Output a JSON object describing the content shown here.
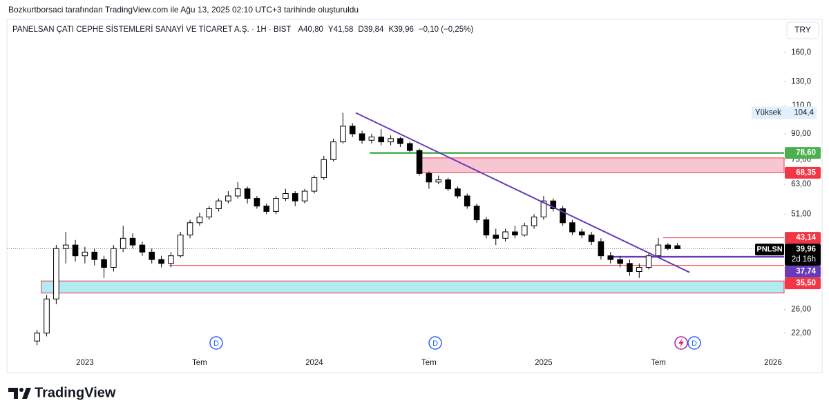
{
  "chart_data": {
    "type": "candlestick",
    "attribution": "Bozkurtborsaci tarafından TradingView.com ile Ağu 13, 2025 02:10 UTC+3 tarihinde oluşturuldu",
    "title": "PANELSAN ÇATI CEPHE SİSTEMLERİ SANAYİ VE TİCARET A.Ş. · 1H · BIST",
    "legend_values": [
      "A40,80",
      "Y41,58",
      "D39,84",
      "K39,96",
      "−0,10 (−0,25%)"
    ],
    "currency": "TRY",
    "brand": "TradingView",
    "log_scale": true,
    "x": [
      -2.5,
      -2,
      -1.5,
      -1,
      -0.5,
      0,
      0.5,
      1,
      1.5,
      2,
      2.5,
      3,
      3.5,
      4,
      4.5,
      5,
      5.5,
      6,
      6.5,
      7,
      7.5,
      8,
      8.5,
      9,
      9.5,
      10,
      10.5,
      11,
      11.5,
      12,
      12.5,
      13,
      13.5,
      14,
      14.5,
      15,
      15.5,
      16,
      16.5,
      17,
      17.5,
      18,
      18.5,
      19,
      19.5,
      20,
      20.5,
      21,
      21.5,
      22,
      22.5,
      23,
      23.5,
      24,
      24.5,
      25,
      25.5,
      26,
      26.5,
      27,
      27.5,
      28,
      28.5,
      29,
      29.5,
      30,
      30.5,
      31
    ],
    "open": [
      20.8,
      22,
      28,
      40,
      41,
      38,
      39,
      37,
      35,
      40,
      43,
      41,
      39,
      37,
      36,
      38,
      44,
      48,
      50,
      53,
      56,
      58,
      61,
      57,
      54,
      52,
      57,
      59,
      56,
      60,
      66,
      75,
      85,
      95,
      90,
      86,
      88,
      85,
      87,
      84,
      80,
      68,
      64,
      65,
      61,
      58,
      54,
      49,
      44,
      43,
      45,
      44,
      47,
      50,
      56,
      53,
      48,
      45,
      44,
      42,
      38,
      37,
      36,
      34,
      35,
      38,
      41,
      40.8
    ],
    "high": [
      22.5,
      28.8,
      41,
      45,
      42.5,
      40.5,
      40,
      38,
      41,
      47,
      44.5,
      42,
      40,
      38,
      39,
      45,
      49,
      51.5,
      54,
      57,
      60,
      64,
      62,
      58,
      55,
      58,
      61,
      60,
      61,
      67,
      77,
      87,
      104.4,
      97,
      92,
      90,
      93,
      89,
      88,
      85,
      81,
      69,
      67,
      66,
      62,
      59,
      55,
      50,
      46,
      46,
      47,
      48,
      51,
      58,
      57,
      54,
      49,
      46,
      45,
      43,
      39,
      38,
      37,
      36,
      39,
      43.14,
      41.58,
      41.58
    ],
    "low": [
      20.2,
      21.5,
      27,
      36,
      36.5,
      36,
      35.5,
      32.5,
      34,
      39,
      40,
      38,
      36,
      35,
      35,
      37.5,
      43,
      47,
      49,
      52,
      55,
      57,
      55,
      53,
      51,
      51,
      56,
      54,
      55,
      59,
      65,
      74,
      84,
      88,
      84,
      84,
      83,
      83,
      82,
      79,
      67,
      61,
      63,
      60,
      57,
      53,
      48,
      43,
      41,
      42,
      43,
      43.5,
      46,
      49,
      52,
      47,
      44,
      43,
      41,
      37,
      36,
      35,
      33,
      32.5,
      34.5,
      37.5,
      39.5,
      39.84
    ],
    "close": [
      22,
      28,
      40,
      41,
      38,
      39,
      37,
      35,
      40,
      43,
      41,
      39,
      37,
      36,
      38,
      44,
      48,
      50,
      53,
      56,
      58,
      61,
      57,
      54,
      52,
      57,
      59,
      56,
      60,
      66,
      75,
      85,
      95,
      90,
      86,
      88,
      85,
      87,
      84,
      80,
      68,
      64,
      65,
      61,
      58,
      54,
      49,
      44,
      43,
      45,
      44,
      47,
      50,
      56,
      53,
      48,
      45,
      44,
      42,
      38,
      37,
      36,
      34,
      35,
      38,
      41,
      40,
      39.96
    ],
    "up_color": "#ffffff",
    "down_color": "#000000",
    "wick_color": "#000000",
    "xlim": [
      -4.08,
      36.58
    ],
    "xticks": [
      {
        "value": 0,
        "label": "2023"
      },
      {
        "value": 6,
        "label": "Tem"
      },
      {
        "value": 12,
        "label": "2024"
      },
      {
        "value": 18,
        "label": "Tem"
      },
      {
        "value": 24,
        "label": "2025"
      },
      {
        "value": 30,
        "label": "Tem"
      },
      {
        "value": 36,
        "label": "2026"
      }
    ],
    "ylim": [
      16.64,
      200.2
    ],
    "yticks": [
      {
        "value": 160,
        "label": "160,0"
      },
      {
        "value": 130,
        "label": "130,0"
      },
      {
        "value": 110,
        "label": "110,0"
      },
      {
        "value": 90,
        "label": "90,00"
      },
      {
        "value": 75,
        "label": "75,00"
      },
      {
        "value": 63,
        "label": "63,00"
      },
      {
        "value": 51,
        "label": "51,00"
      },
      {
        "value": 26,
        "label": "26,00"
      },
      {
        "value": 22,
        "label": "22,00"
      }
    ],
    "trendline": {
      "x": [
        14.17,
        31.63
      ],
      "y": [
        104.4,
        33.8
      ],
      "color": "#673ab7"
    },
    "zones": [
      {
        "top": 75.9,
        "bottom": 68.35,
        "x_start": 17.4,
        "color": "#f8c6d3",
        "border": "#f23645",
        "label": "68,35"
      },
      {
        "top": 31.8,
        "bottom": 29.2,
        "x_start": -2.28,
        "color": "#b2ebf2",
        "border": "#f23645"
      }
    ],
    "levels": [
      {
        "value": 78.6,
        "x_start": 14.9,
        "color": "#4caf50",
        "label": "78,60"
      },
      {
        "value": 43.14,
        "x_start": 30.25,
        "color": "#f23645",
        "label": "43,14"
      },
      {
        "value": 37.74,
        "x_start": 27.55,
        "color": "#673ab7",
        "label": "37,74"
      },
      {
        "value": 35.5,
        "x_start": 4.4,
        "color": "#f23645",
        "label": "35,50"
      }
    ],
    "last_price": {
      "value": 39.96,
      "label": "39,96",
      "symbol": "PNLSN",
      "countdown": "2d 16h"
    },
    "high_marker": {
      "text": "Yüksek",
      "value": 104.4,
      "label": "104,4"
    },
    "events": [
      {
        "x": 6.87,
        "label": "D"
      },
      {
        "x": 18.33,
        "label": "D"
      },
      {
        "x": 31.88,
        "label": "D"
      }
    ]
  }
}
